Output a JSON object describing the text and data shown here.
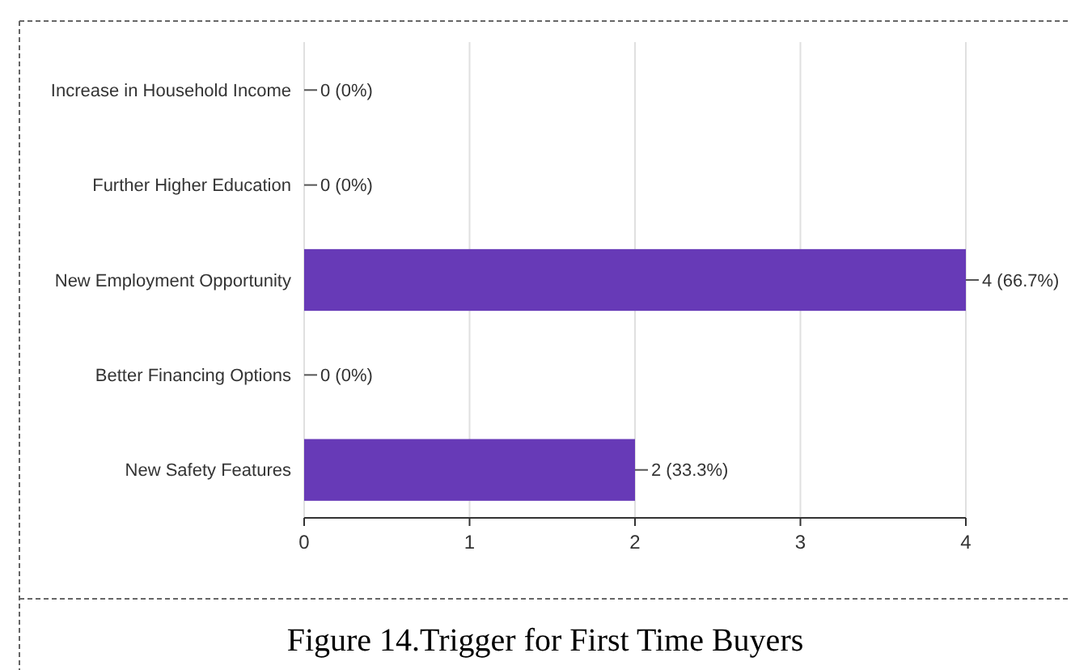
{
  "chart_data": {
    "type": "bar",
    "orientation": "horizontal",
    "title": "Figure 14.Trigger for First Time Buyers",
    "categories": [
      "Increase in Household Income",
      "Further Higher Education",
      "New Employment Opportunity",
      "Better Financing Options",
      "New Safety Features"
    ],
    "values": [
      0,
      0,
      4,
      0,
      2
    ],
    "color": "#673ab7",
    "value_labels": [
      "0 (0%)",
      "0 (0%)",
      "4 (66.7%)",
      "0 (0%)",
      "2 (33.3%)"
    ],
    "xlim": [
      0,
      4
    ],
    "xticks": [
      0,
      1,
      2,
      3,
      4
    ],
    "grid": "x"
  }
}
